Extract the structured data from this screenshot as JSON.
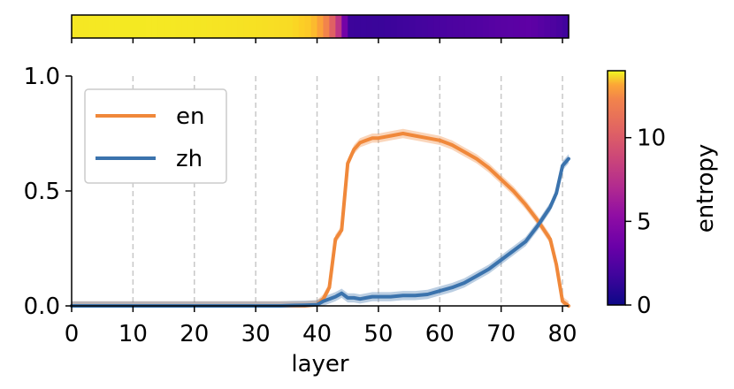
{
  "chart_data": {
    "type": "line",
    "xlabel": "layer",
    "ylabel": "",
    "xlim": [
      0,
      81
    ],
    "ylim": [
      0,
      1
    ],
    "x_ticks": [
      "0",
      "10",
      "20",
      "30",
      "40",
      "50",
      "60",
      "70",
      "80"
    ],
    "y_ticks": [
      "0.0",
      "0.5",
      "1.0"
    ],
    "grid": "vertical dashed at x ticks 10-80",
    "legend_position": "top-left",
    "x": [
      0,
      2,
      4,
      6,
      8,
      10,
      12,
      14,
      16,
      18,
      20,
      22,
      24,
      26,
      28,
      30,
      32,
      34,
      36,
      38,
      40,
      41,
      42,
      43,
      44,
      45,
      46,
      47,
      48,
      49,
      50,
      52,
      54,
      56,
      58,
      60,
      62,
      64,
      66,
      68,
      70,
      72,
      74,
      76,
      77,
      78,
      79,
      80,
      81
    ],
    "series": [
      {
        "name": "en",
        "color": "#f0883a",
        "values": [
          0,
          0,
          0,
          0,
          0,
          0,
          0,
          0,
          0,
          0,
          0,
          0,
          0,
          0,
          0,
          0,
          0,
          0,
          0,
          0,
          0.005,
          0.03,
          0.08,
          0.29,
          0.33,
          0.62,
          0.68,
          0.71,
          0.72,
          0.73,
          0.73,
          0.74,
          0.75,
          0.74,
          0.73,
          0.72,
          0.7,
          0.67,
          0.64,
          0.6,
          0.55,
          0.5,
          0.44,
          0.37,
          0.33,
          0.29,
          0.18,
          0.02,
          0.0
        ],
        "band": 0.02
      },
      {
        "name": "zh",
        "color": "#3b73ad",
        "values": [
          0,
          0,
          0,
          0,
          0,
          0,
          0,
          0,
          0,
          0,
          0,
          0,
          0,
          0,
          0,
          0,
          0,
          0,
          0.002,
          0.003,
          0.005,
          0.02,
          0.03,
          0.04,
          0.055,
          0.035,
          0.035,
          0.03,
          0.035,
          0.04,
          0.04,
          0.04,
          0.045,
          0.045,
          0.05,
          0.065,
          0.08,
          0.1,
          0.13,
          0.16,
          0.2,
          0.24,
          0.28,
          0.35,
          0.39,
          0.43,
          0.49,
          0.61,
          0.64
        ],
        "band": 0.02
      }
    ],
    "colorbar": {
      "label": "entropy",
      "min": 0,
      "max": 14,
      "ticks": [
        "0",
        "5",
        "10"
      ],
      "colormap": "plasma"
    },
    "entropy_strip": {
      "x": [
        0,
        10,
        20,
        30,
        36,
        38,
        39,
        40,
        41,
        42,
        43,
        44,
        45,
        50,
        55,
        60,
        65,
        70,
        75,
        80,
        81
      ],
      "values": [
        13.4,
        13.5,
        13.4,
        13.2,
        13.0,
        12.5,
        12.4,
        11.4,
        10.6,
        9.0,
        7.5,
        5.0,
        1.3,
        1.2,
        1.4,
        1.7,
        1.9,
        2.2,
        2.4,
        1.6,
        1.2
      ]
    }
  }
}
